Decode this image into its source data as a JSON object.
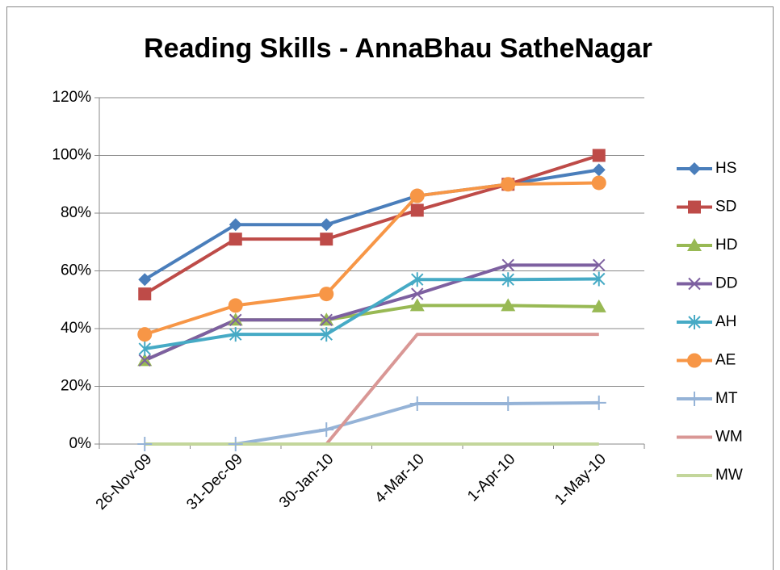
{
  "chart_data": {
    "type": "line",
    "title": "Reading Skills - AnnaBhau SatheNagar",
    "categories": [
      "26-Nov-09",
      "31-Dec-09",
      "30-Jan-10",
      "4-Mar-10",
      "1-Apr-10",
      "1-May-10"
    ],
    "series": [
      {
        "name": "HS",
        "color": "#4a7ebb",
        "marker": "diamond",
        "values": [
          57,
          76,
          76,
          86,
          90,
          95
        ]
      },
      {
        "name": "SD",
        "color": "#be4b48",
        "marker": "square",
        "values": [
          52,
          71,
          71,
          81,
          90,
          100
        ]
      },
      {
        "name": "HD",
        "color": "#98b954",
        "marker": "triangle",
        "values": [
          29,
          43,
          43,
          48,
          48,
          47.6
        ]
      },
      {
        "name": "DD",
        "color": "#7d60a0",
        "marker": "x",
        "values": [
          29,
          43,
          43,
          52,
          62,
          62
        ]
      },
      {
        "name": "AH",
        "color": "#46aac5",
        "marker": "star",
        "values": [
          33,
          38,
          38,
          57,
          57,
          57.2
        ]
      },
      {
        "name": "AE",
        "color": "#f79646",
        "marker": "circle",
        "values": [
          38,
          48,
          52,
          86,
          90,
          90.5
        ]
      },
      {
        "name": "MT",
        "color": "#95b3d7",
        "marker": "plus",
        "values": [
          0,
          0,
          5,
          14,
          14,
          14.3
        ]
      },
      {
        "name": "WM",
        "color": "#d99795",
        "marker": "none",
        "values": [
          0,
          0,
          0,
          38,
          38,
          38
        ]
      },
      {
        "name": "MW",
        "color": "#c3d69b",
        "marker": "none",
        "values": [
          0,
          0,
          0,
          0,
          0,
          0
        ]
      }
    ],
    "ylim": [
      0,
      120
    ],
    "yticks": [
      {
        "value": 0,
        "label": "0%"
      },
      {
        "value": 20,
        "label": "20%"
      },
      {
        "value": 40,
        "label": "40%"
      },
      {
        "value": 60,
        "label": "60%"
      },
      {
        "value": 80,
        "label": "80%"
      },
      {
        "value": 100,
        "label": "100%"
      },
      {
        "value": 120,
        "label": "120%"
      }
    ],
    "grid": true,
    "legend": "right"
  }
}
